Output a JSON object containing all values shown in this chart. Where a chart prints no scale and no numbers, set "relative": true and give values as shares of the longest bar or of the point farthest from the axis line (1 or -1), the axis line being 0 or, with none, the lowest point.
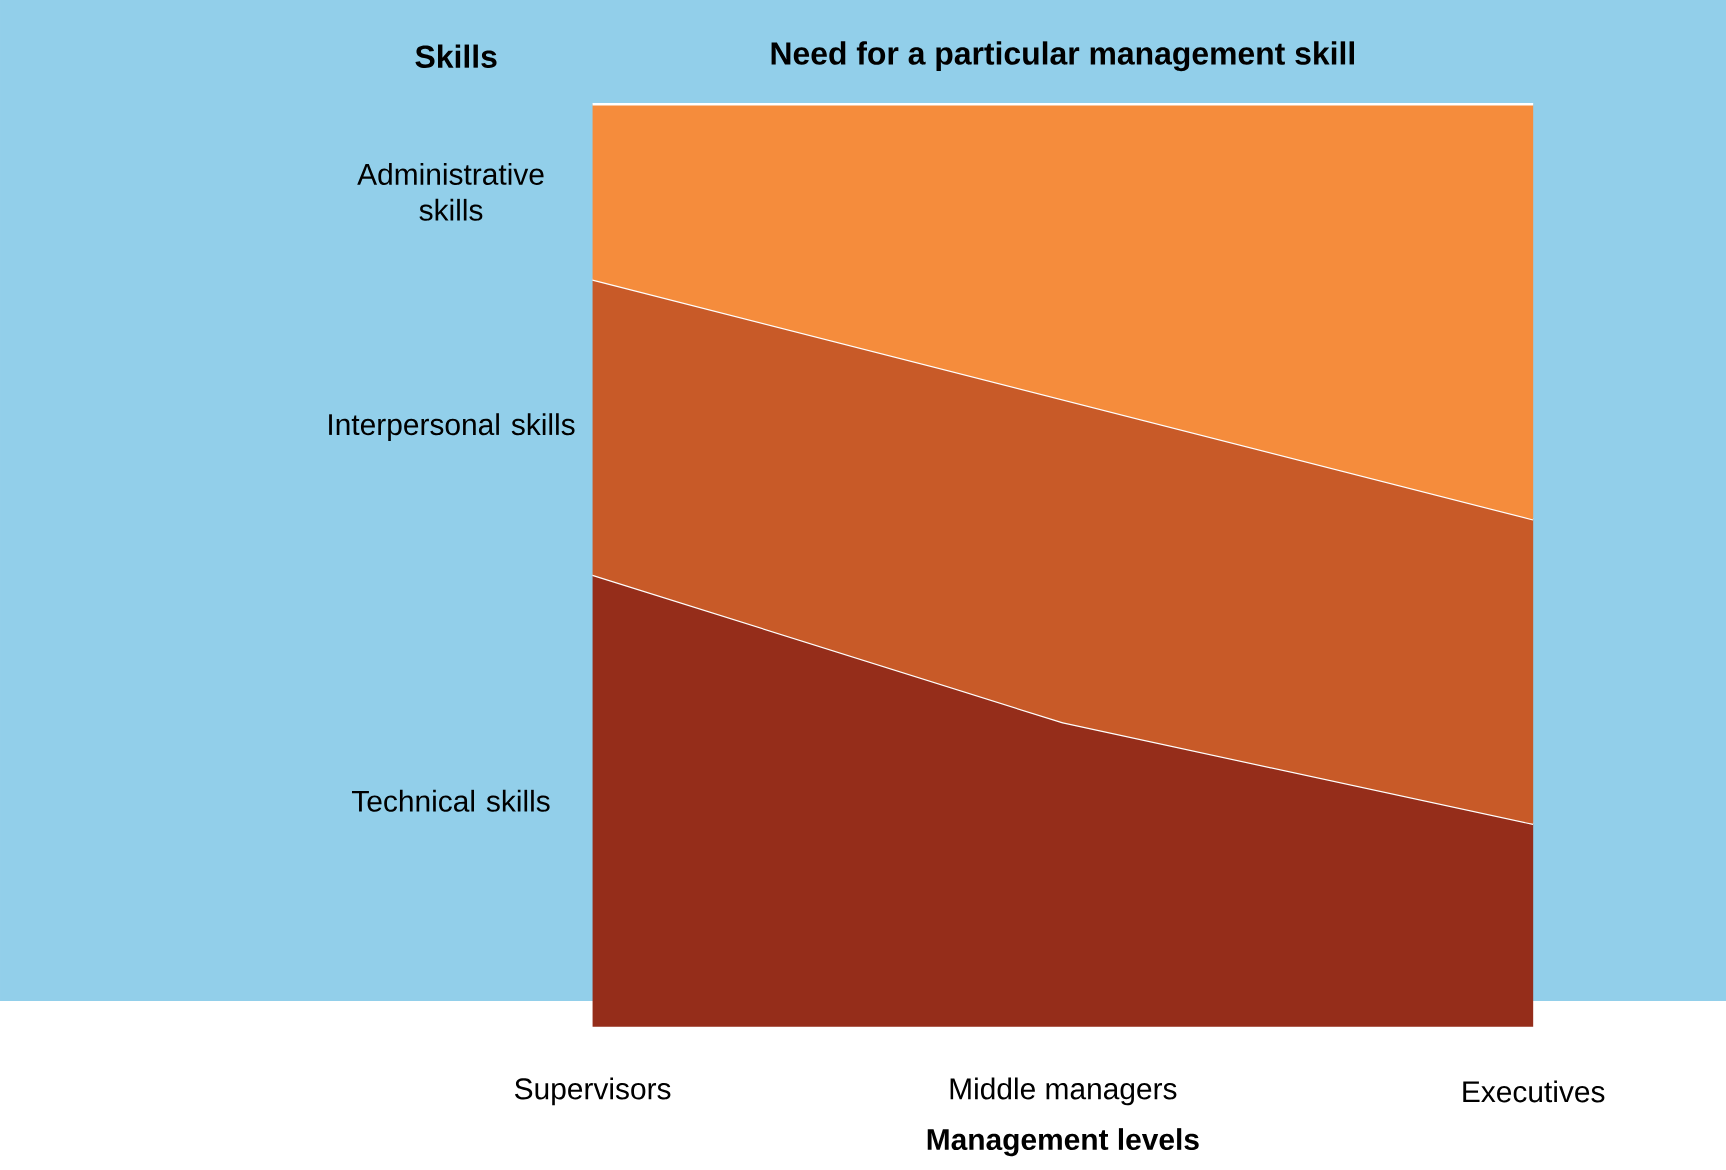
{
  "chart_data": {
    "type": "area",
    "stacked": true,
    "relative": true,
    "title": "Need for a particular management skill",
    "xlabel": "Management levels",
    "legend_title": "Skills",
    "categories": [
      "Supervisors",
      "Middle managers",
      "Executives"
    ],
    "series": [
      {
        "name": "Technical skills",
        "color": "#952d1a",
        "values": [
          0.49,
          0.33,
          0.22
        ]
      },
      {
        "name": "Interpersonal skills",
        "color": "#c85a28",
        "values": [
          0.32,
          0.35,
          0.33
        ]
      },
      {
        "name": "Administrative skills",
        "color": "#f58c3c",
        "values": [
          0.19,
          0.32,
          0.45
        ]
      }
    ]
  }
}
